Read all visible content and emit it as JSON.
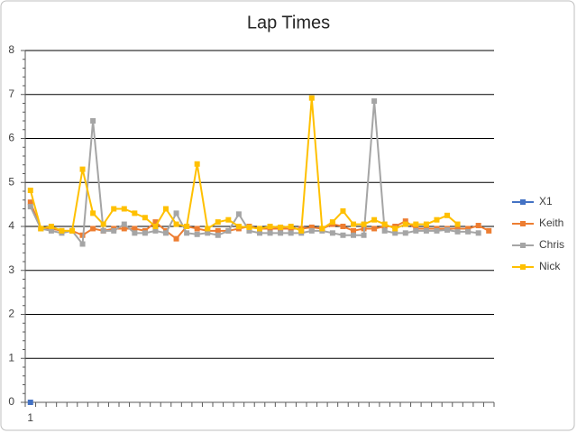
{
  "chart_data": {
    "type": "line",
    "title": "Lap Times",
    "categories": [
      "1",
      null,
      null,
      null,
      null,
      null,
      null,
      null,
      null,
      null,
      null,
      null,
      null,
      null,
      null,
      null,
      null,
      null,
      null,
      null,
      null,
      null,
      null,
      null,
      null,
      null,
      null,
      null,
      null,
      null,
      null,
      null,
      null,
      null,
      null,
      null,
      null,
      null,
      null,
      null,
      null,
      null,
      null,
      null,
      null
    ],
    "ylim": [
      0,
      8
    ],
    "yticks": [
      0,
      1,
      2,
      3,
      4,
      5,
      6,
      7,
      8
    ],
    "grid": true,
    "legend": "right",
    "series": [
      {
        "name": "X1",
        "color": "#4472c4",
        "values": [
          0,
          null,
          null,
          null,
          null,
          null,
          null,
          null,
          null,
          null,
          null,
          null,
          null,
          null,
          null,
          null,
          null,
          null,
          null,
          null,
          null,
          null,
          null,
          null,
          null,
          null,
          null,
          null,
          null,
          null,
          null,
          null,
          null,
          null,
          null,
          null,
          null,
          null,
          null,
          null,
          null,
          null,
          null,
          null,
          null
        ]
      },
      {
        "name": "Keith",
        "color": "#ed7d31",
        "values": [
          4.55,
          3.95,
          3.95,
          3.9,
          3.9,
          3.8,
          3.95,
          3.9,
          3.95,
          3.95,
          3.95,
          3.9,
          4.1,
          3.9,
          3.72,
          4.0,
          3.95,
          3.9,
          3.9,
          3.9,
          3.95,
          4.0,
          3.95,
          3.95,
          3.95,
          3.95,
          3.95,
          3.98,
          3.95,
          4.05,
          4.0,
          3.9,
          3.95,
          3.95,
          4.0,
          4.0,
          4.12,
          3.95,
          3.95,
          3.95,
          3.95,
          3.95,
          3.95,
          4.02,
          3.9
        ]
      },
      {
        "name": "Chris",
        "color": "#a5a5a5",
        "values": [
          4.45,
          3.95,
          3.9,
          3.85,
          3.9,
          3.6,
          6.4,
          3.9,
          3.9,
          4.05,
          3.85,
          3.85,
          3.9,
          3.85,
          4.3,
          3.85,
          3.82,
          3.85,
          3.8,
          3.9,
          4.28,
          3.9,
          3.85,
          3.85,
          3.85,
          3.85,
          3.85,
          3.9,
          3.9,
          3.85,
          3.8,
          3.8,
          3.8,
          6.85,
          3.9,
          3.85,
          3.85,
          3.9,
          3.9,
          3.9,
          3.92,
          3.88,
          3.88,
          3.85,
          null
        ]
      },
      {
        "name": "Nick",
        "color": "#ffc000",
        "values": [
          4.82,
          3.95,
          4.0,
          3.9,
          3.9,
          5.3,
          4.3,
          4.05,
          4.4,
          4.4,
          4.3,
          4.2,
          4.0,
          4.4,
          4.05,
          4.0,
          5.42,
          3.95,
          4.1,
          4.15,
          4.0,
          3.98,
          3.95,
          4.0,
          3.98,
          4.0,
          3.9,
          6.92,
          3.95,
          4.1,
          4.35,
          4.05,
          4.05,
          4.15,
          4.05,
          3.95,
          4.05,
          4.05,
          4.05,
          4.15,
          4.25,
          4.05,
          null,
          null,
          null
        ]
      }
    ]
  }
}
